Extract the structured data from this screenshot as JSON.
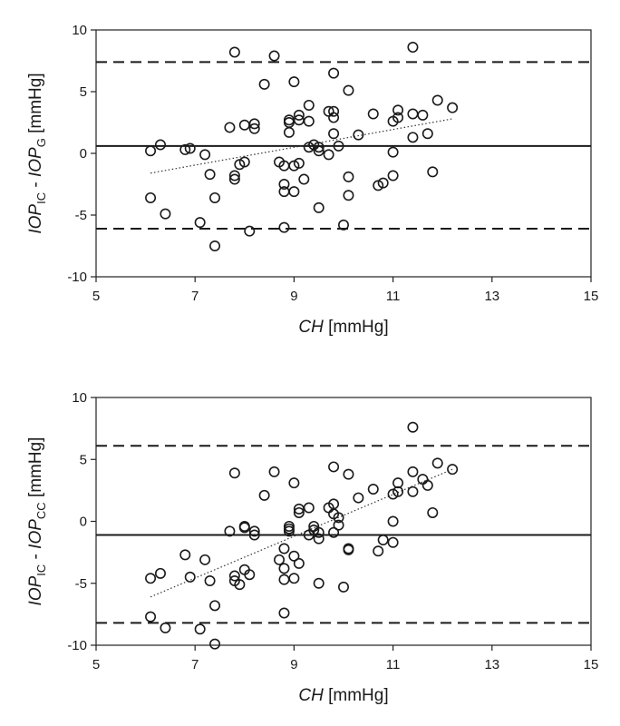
{
  "chart_data": [
    {
      "type": "scatter",
      "title": "",
      "xlabel": {
        "italic": "CH",
        "rest": " [mmHg]"
      },
      "ylabel": {
        "a": "IOP",
        "a_sub": "IC",
        "sep": " - ",
        "b": "IOP",
        "b_sub": "G",
        "unit": " [mmHg]"
      },
      "xlim": [
        5,
        15
      ],
      "ylim": [
        -10,
        10
      ],
      "xticks": [
        5,
        7,
        9,
        11,
        13,
        15
      ],
      "yticks": [
        -10,
        -5,
        0,
        5,
        10
      ],
      "grid": false,
      "reference_lines": {
        "mean": 0.6,
        "upper_loa": 7.4,
        "lower_loa": -6.1
      },
      "trend_line": {
        "x": [
          6.1,
          12.2
        ],
        "y": [
          -1.6,
          2.8
        ]
      },
      "points": [
        [
          6.1,
          0.2
        ],
        [
          6.3,
          0.7
        ],
        [
          6.1,
          -3.6
        ],
        [
          6.4,
          -4.9
        ],
        [
          6.8,
          0.3
        ],
        [
          6.9,
          0.4
        ],
        [
          7.1,
          -5.6
        ],
        [
          7.2,
          -0.1
        ],
        [
          7.3,
          -1.7
        ],
        [
          7.4,
          -3.6
        ],
        [
          7.4,
          -7.5
        ],
        [
          7.7,
          2.1
        ],
        [
          7.8,
          8.2
        ],
        [
          7.8,
          -1.8
        ],
        [
          7.8,
          -2.1
        ],
        [
          7.9,
          -0.9
        ],
        [
          8.0,
          2.3
        ],
        [
          8.0,
          -0.7
        ],
        [
          8.1,
          -6.3
        ],
        [
          8.2,
          2.4
        ],
        [
          8.2,
          2.0
        ],
        [
          8.4,
          5.6
        ],
        [
          8.6,
          7.9
        ],
        [
          8.7,
          -0.7
        ],
        [
          8.8,
          -1.0
        ],
        [
          8.8,
          -2.5
        ],
        [
          8.8,
          -3.1
        ],
        [
          8.8,
          -6.0
        ],
        [
          8.9,
          2.7
        ],
        [
          8.9,
          2.5
        ],
        [
          8.9,
          1.7
        ],
        [
          9.0,
          5.8
        ],
        [
          9.0,
          -1.0
        ],
        [
          9.0,
          -3.1
        ],
        [
          9.1,
          3.1
        ],
        [
          9.1,
          2.7
        ],
        [
          9.1,
          -0.8
        ],
        [
          9.2,
          -2.1
        ],
        [
          9.3,
          3.9
        ],
        [
          9.3,
          2.6
        ],
        [
          9.3,
          0.5
        ],
        [
          9.4,
          0.7
        ],
        [
          9.5,
          0.5
        ],
        [
          9.5,
          0.2
        ],
        [
          9.5,
          -4.4
        ],
        [
          9.7,
          3.4
        ],
        [
          9.7,
          -0.1
        ],
        [
          9.8,
          6.5
        ],
        [
          9.8,
          3.4
        ],
        [
          9.8,
          2.9
        ],
        [
          9.8,
          1.6
        ],
        [
          9.9,
          0.6
        ],
        [
          10.0,
          -5.8
        ],
        [
          10.1,
          5.1
        ],
        [
          10.1,
          -1.9
        ],
        [
          10.1,
          -3.4
        ],
        [
          10.3,
          1.5
        ],
        [
          10.6,
          3.2
        ],
        [
          10.7,
          -2.6
        ],
        [
          10.8,
          -2.4
        ],
        [
          11.0,
          2.6
        ],
        [
          11.0,
          0.1
        ],
        [
          11.0,
          -1.8
        ],
        [
          11.1,
          3.5
        ],
        [
          11.1,
          2.9
        ],
        [
          11.4,
          8.6
        ],
        [
          11.4,
          3.2
        ],
        [
          11.4,
          1.3
        ],
        [
          11.6,
          3.1
        ],
        [
          11.7,
          1.6
        ],
        [
          11.8,
          -1.5
        ],
        [
          11.9,
          4.3
        ],
        [
          12.2,
          3.7
        ]
      ]
    },
    {
      "type": "scatter",
      "title": "",
      "xlabel": {
        "italic": "CH",
        "rest": " [mmHg]"
      },
      "ylabel": {
        "a": "IOP",
        "a_sub": "IC",
        "sep": " - ",
        "b": "IOP",
        "b_sub": "CC",
        "unit": " [mmHg]"
      },
      "xlim": [
        5,
        15
      ],
      "ylim": [
        -10,
        10
      ],
      "xticks": [
        5,
        7,
        9,
        11,
        13,
        15
      ],
      "yticks": [
        -10,
        -5,
        0,
        5,
        10
      ],
      "grid": false,
      "reference_lines": {
        "mean": -1.1,
        "upper_loa": 6.1,
        "lower_loa": -8.2
      },
      "trend_line": {
        "x": [
          6.1,
          12.2
        ],
        "y": [
          -6.1,
          4.2
        ]
      },
      "points": [
        [
          6.1,
          -4.6
        ],
        [
          6.1,
          -7.7
        ],
        [
          6.3,
          -4.2
        ],
        [
          6.4,
          -8.6
        ],
        [
          6.8,
          -2.7
        ],
        [
          6.9,
          -4.5
        ],
        [
          7.1,
          -8.7
        ],
        [
          7.2,
          -3.1
        ],
        [
          7.3,
          -4.8
        ],
        [
          7.4,
          -6.8
        ],
        [
          7.4,
          -9.9
        ],
        [
          7.7,
          -0.8
        ],
        [
          7.8,
          3.9
        ],
        [
          7.8,
          -4.4
        ],
        [
          7.8,
          -4.8
        ],
        [
          7.9,
          -5.1
        ],
        [
          8.0,
          -0.4
        ],
        [
          8.0,
          -0.5
        ],
        [
          8.0,
          -3.9
        ],
        [
          8.1,
          -4.3
        ],
        [
          8.2,
          -0.8
        ],
        [
          8.2,
          -1.1
        ],
        [
          8.4,
          2.1
        ],
        [
          8.6,
          4.0
        ],
        [
          8.7,
          -3.1
        ],
        [
          8.8,
          -2.2
        ],
        [
          8.8,
          -3.8
        ],
        [
          8.8,
          -4.7
        ],
        [
          8.8,
          -7.4
        ],
        [
          8.9,
          -0.4
        ],
        [
          8.9,
          -0.6
        ],
        [
          8.9,
          -0.8
        ],
        [
          9.0,
          3.1
        ],
        [
          9.0,
          -2.8
        ],
        [
          9.0,
          -4.6
        ],
        [
          9.1,
          1.0
        ],
        [
          9.1,
          0.7
        ],
        [
          9.1,
          -3.4
        ],
        [
          9.3,
          1.1
        ],
        [
          9.3,
          -1.1
        ],
        [
          9.4,
          -0.4
        ],
        [
          9.4,
          -0.7
        ],
        [
          9.5,
          -0.9
        ],
        [
          9.5,
          -5.0
        ],
        [
          9.5,
          -1.4
        ],
        [
          9.7,
          1.1
        ],
        [
          9.8,
          4.4
        ],
        [
          9.8,
          1.4
        ],
        [
          9.8,
          0.6
        ],
        [
          9.8,
          -0.9
        ],
        [
          9.9,
          0.3
        ],
        [
          9.9,
          -0.3
        ],
        [
          10.0,
          -5.3
        ],
        [
          10.1,
          3.8
        ],
        [
          10.1,
          -2.2
        ],
        [
          10.1,
          -2.3
        ],
        [
          10.3,
          1.9
        ],
        [
          10.6,
          2.6
        ],
        [
          10.7,
          -2.4
        ],
        [
          10.8,
          -1.5
        ],
        [
          11.0,
          2.2
        ],
        [
          11.0,
          0.0
        ],
        [
          11.0,
          -1.7
        ],
        [
          11.1,
          3.1
        ],
        [
          11.1,
          2.4
        ],
        [
          11.4,
          7.6
        ],
        [
          11.4,
          4.0
        ],
        [
          11.4,
          2.4
        ],
        [
          11.6,
          3.4
        ],
        [
          11.7,
          2.9
        ],
        [
          11.8,
          0.7
        ],
        [
          11.9,
          4.7
        ],
        [
          12.2,
          4.2
        ]
      ]
    }
  ]
}
